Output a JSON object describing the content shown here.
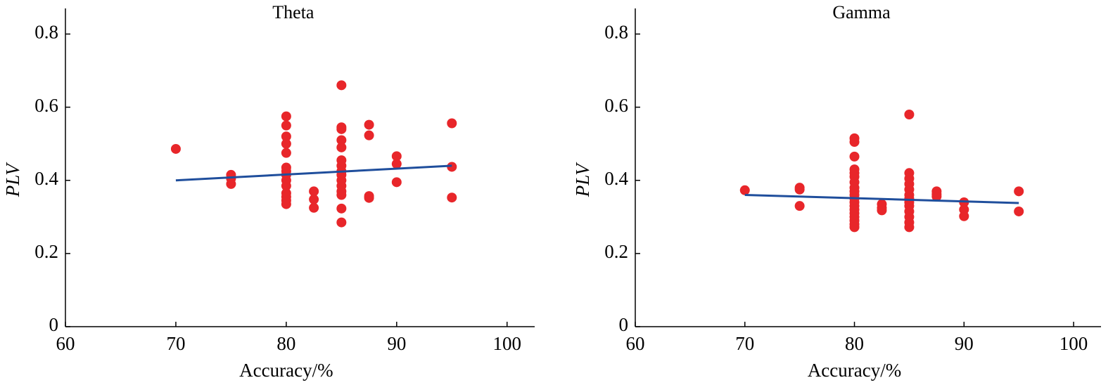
{
  "chart_data": [
    {
      "type": "scatter",
      "title": "Theta",
      "x_label": "Accuracy/%",
      "y_label": "PLV",
      "x": [
        70,
        75,
        75,
        75,
        80,
        80,
        80,
        80,
        80,
        80,
        80,
        80,
        80,
        80,
        80,
        80,
        80,
        80,
        82.5,
        82.5,
        82.5,
        85,
        85,
        85,
        85,
        85,
        85,
        85,
        85,
        85,
        85,
        85,
        85,
        85,
        85,
        85,
        87.5,
        87.5,
        87.5,
        87.5,
        90,
        90,
        90,
        95,
        95,
        95
      ],
      "values": [
        0.486,
        0.415,
        0.405,
        0.39,
        0.575,
        0.55,
        0.52,
        0.5,
        0.475,
        0.435,
        0.425,
        0.415,
        0.4,
        0.385,
        0.365,
        0.355,
        0.345,
        0.335,
        0.37,
        0.348,
        0.325,
        0.66,
        0.545,
        0.54,
        0.51,
        0.49,
        0.455,
        0.44,
        0.425,
        0.415,
        0.4,
        0.385,
        0.37,
        0.36,
        0.323,
        0.285,
        0.552,
        0.523,
        0.357,
        0.352,
        0.466,
        0.445,
        0.395,
        0.556,
        0.437,
        0.353
      ],
      "color": "#e8262a",
      "fit": {
        "x": [
          70,
          95
        ],
        "values": [
          0.4,
          0.44
        ],
        "color": "#1f4e9c"
      },
      "xlim": [
        60,
        102.5
      ],
      "ylim": [
        0,
        0.87
      ],
      "xticks": [
        60,
        70,
        80,
        90,
        100
      ],
      "yticks": [
        0,
        0.2,
        0.4,
        0.6,
        0.8
      ]
    },
    {
      "type": "scatter",
      "title": "Gamma",
      "x_label": "Accuracy/%",
      "y_label": "PLV",
      "x": [
        70,
        75,
        75,
        75,
        80,
        80,
        80,
        80,
        80,
        80,
        80,
        80,
        80,
        80,
        80,
        80,
        80,
        80,
        80,
        80,
        80,
        80,
        80,
        82.5,
        82.5,
        82.5,
        85,
        85,
        85,
        85,
        85,
        85,
        85,
        85,
        85,
        85,
        85,
        85,
        85,
        87.5,
        87.5,
        87.5,
        90,
        90,
        90,
        95,
        95
      ],
      "values": [
        0.373,
        0.38,
        0.375,
        0.33,
        0.515,
        0.505,
        0.465,
        0.43,
        0.42,
        0.41,
        0.395,
        0.38,
        0.37,
        0.36,
        0.35,
        0.34,
        0.33,
        0.32,
        0.31,
        0.3,
        0.29,
        0.28,
        0.272,
        0.335,
        0.325,
        0.318,
        0.58,
        0.42,
        0.405,
        0.39,
        0.375,
        0.36,
        0.35,
        0.34,
        0.33,
        0.315,
        0.3,
        0.285,
        0.272,
        0.37,
        0.362,
        0.356,
        0.34,
        0.32,
        0.302,
        0.37,
        0.315
      ],
      "color": "#e8262a",
      "fit": {
        "x": [
          70,
          95
        ],
        "values": [
          0.36,
          0.338
        ],
        "color": "#1f4e9c"
      },
      "xlim": [
        60,
        102.5
      ],
      "ylim": [
        0,
        0.87
      ],
      "xticks": [
        60,
        70,
        80,
        90,
        100
      ],
      "yticks": [
        0,
        0.2,
        0.4,
        0.6,
        0.8
      ]
    }
  ]
}
